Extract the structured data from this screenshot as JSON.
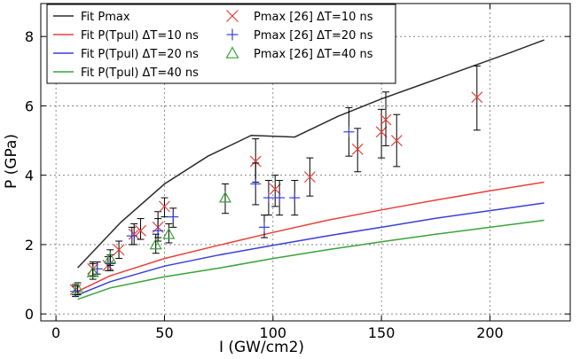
{
  "chart_data": {
    "type": "line",
    "xlabel": "I (GW/cm2)",
    "ylabel": "P (GPa)",
    "xlim": [
      -7,
      237
    ],
    "ylim": [
      -0.2,
      8.95
    ],
    "xticks": [
      0,
      50,
      100,
      150,
      200
    ],
    "yticks": [
      0,
      2,
      4,
      6,
      8
    ],
    "grid": true,
    "legend_position": "top-left",
    "lines": [
      {
        "name": "Fit Pmax",
        "color": "#2b2b2b",
        "x": [
          10,
          30,
          50,
          70,
          90,
          110,
          130,
          150,
          170,
          190,
          210,
          225
        ],
        "y": [
          1.33,
          2.65,
          3.75,
          4.55,
          5.15,
          5.1,
          5.7,
          6.2,
          6.65,
          7.1,
          7.55,
          7.9
        ]
      },
      {
        "name": "Fit P(Tpul) ΔT=10 ns",
        "color": "#e8403a",
        "x": [
          10,
          25,
          50,
          75,
          100,
          125,
          150,
          175,
          200,
          225
        ],
        "y": [
          0.65,
          1.1,
          1.6,
          1.98,
          2.35,
          2.7,
          3.0,
          3.28,
          3.55,
          3.8
        ]
      },
      {
        "name": "Fit P(Tpul) ΔT=20 ns",
        "color": "#3a3fd6",
        "x": [
          10,
          25,
          50,
          75,
          100,
          125,
          150,
          175,
          200,
          225
        ],
        "y": [
          0.55,
          0.93,
          1.38,
          1.7,
          1.98,
          2.25,
          2.5,
          2.76,
          2.98,
          3.2
        ]
      },
      {
        "name": "Fit P(Tpul) ΔT=40 ns",
        "color": "#3aa33a",
        "x": [
          10,
          25,
          50,
          75,
          100,
          125,
          150,
          175,
          200,
          225
        ],
        "y": [
          0.42,
          0.75,
          1.07,
          1.32,
          1.6,
          1.85,
          2.08,
          2.3,
          2.5,
          2.7
        ]
      }
    ],
    "points": [
      {
        "name": "Pmax [26] ΔT=10 ns",
        "marker": "x",
        "color": "#e8403a",
        "data": [
          {
            "x": 9,
            "y": 0.7,
            "lo": 0.55,
            "hi": 0.85
          },
          {
            "x": 17,
            "y": 1.3,
            "lo": 1.1,
            "hi": 1.5
          },
          {
            "x": 24,
            "y": 1.4,
            "lo": 1.25,
            "hi": 1.65
          },
          {
            "x": 29,
            "y": 1.85,
            "lo": 1.6,
            "hi": 2.1
          },
          {
            "x": 36,
            "y": 2.3,
            "lo": 2.0,
            "hi": 2.6
          },
          {
            "x": 39,
            "y": 2.4,
            "lo": 2.15,
            "hi": 2.75
          },
          {
            "x": 47,
            "y": 2.5,
            "lo": 2.2,
            "hi": 2.95
          },
          {
            "x": 50,
            "y": 3.1,
            "lo": 2.8,
            "hi": 3.35
          },
          {
            "x": 92,
            "y": 4.4,
            "lo": 3.8,
            "hi": 5.05
          },
          {
            "x": 101,
            "y": 3.6,
            "lo": 3.1,
            "hi": 4.0
          },
          {
            "x": 117,
            "y": 3.95,
            "lo": 3.4,
            "hi": 4.5
          },
          {
            "x": 139,
            "y": 4.75,
            "lo": 4.1,
            "hi": 5.35
          },
          {
            "x": 150,
            "y": 5.25,
            "lo": 4.5,
            "hi": 5.9
          },
          {
            "x": 152,
            "y": 5.6,
            "lo": 4.85,
            "hi": 6.4
          },
          {
            "x": 157,
            "y": 5.0,
            "lo": 4.25,
            "hi": 5.75
          },
          {
            "x": 194,
            "y": 6.25,
            "lo": 5.3,
            "hi": 7.15
          }
        ]
      },
      {
        "name": "Pmax [26] ΔT=20 ns",
        "marker": "+",
        "color": "#3a3fd6",
        "data": [
          {
            "x": 9,
            "y": 0.65,
            "lo": 0.5,
            "hi": 0.8
          },
          {
            "x": 19,
            "y": 1.3,
            "lo": 1.15,
            "hi": 1.5
          },
          {
            "x": 25,
            "y": 1.45,
            "lo": 1.25,
            "hi": 1.7
          },
          {
            "x": 35,
            "y": 2.25,
            "lo": 2.0,
            "hi": 2.5
          },
          {
            "x": 47,
            "y": 2.4,
            "lo": 2.1,
            "hi": 2.75
          },
          {
            "x": 54,
            "y": 2.8,
            "lo": 2.5,
            "hi": 3.05
          },
          {
            "x": 92,
            "y": 3.75,
            "lo": 3.15,
            "hi": 4.35
          },
          {
            "x": 96,
            "y": 2.5,
            "lo": 2.2,
            "hi": 2.85
          },
          {
            "x": 98,
            "y": 3.35,
            "lo": 2.85,
            "hi": 3.85
          },
          {
            "x": 103,
            "y": 3.35,
            "lo": 2.85,
            "hi": 3.85
          },
          {
            "x": 110,
            "y": 3.35,
            "lo": 2.85,
            "hi": 3.85
          },
          {
            "x": 135,
            "y": 5.25,
            "lo": 4.55,
            "hi": 5.95
          }
        ]
      },
      {
        "name": "Pmax [26] ΔT=40 ns",
        "marker": "triangle",
        "color": "#3aa33a",
        "data": [
          {
            "x": 10,
            "y": 0.72,
            "lo": 0.55,
            "hi": 0.9
          },
          {
            "x": 17,
            "y": 1.2,
            "lo": 1.0,
            "hi": 1.45
          },
          {
            "x": 25,
            "y": 1.6,
            "lo": 1.4,
            "hi": 1.85
          },
          {
            "x": 46,
            "y": 2.0,
            "lo": 1.75,
            "hi": 2.3
          },
          {
            "x": 52,
            "y": 2.3,
            "lo": 2.05,
            "hi": 2.6
          },
          {
            "x": 78,
            "y": 3.35,
            "lo": 2.9,
            "hi": 3.75
          }
        ]
      }
    ]
  }
}
